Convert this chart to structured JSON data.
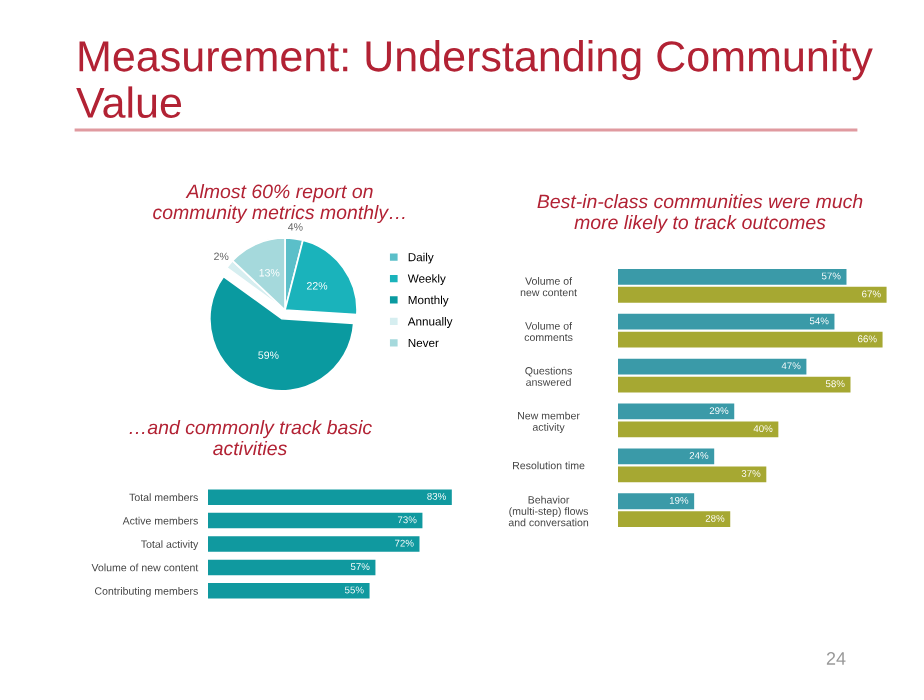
{
  "chart_data": [
    {
      "type": "other",
      "title": "Measurement: Understanding Community Value",
      "annotations": [
        "24"
      ]
    },
    {
      "type": "pie",
      "title": "Almost 60% report on\ncommunity metrics monthly…",
      "categories": [
        "Daily",
        "Weekly",
        "Monthly",
        "Annually",
        "Never"
      ],
      "values": [
        4,
        22,
        59,
        2,
        13
      ],
      "colors": [
        "#5bbfc9",
        "#1ab3bb",
        "#0a9aa0",
        "#d6eef0",
        "#a5d9dc"
      ],
      "value_labels": [
        "4%",
        "22%",
        "59%",
        "2%",
        "13%"
      ],
      "legend": "right"
    },
    {
      "type": "bar",
      "orientation": "horizontal",
      "title": "…and commonly track basic\nactivities",
      "categories": [
        "Total members",
        "Active members",
        "Total activity",
        "Volume of new content",
        "Contributing members"
      ],
      "values": [
        83,
        73,
        72,
        57,
        55
      ],
      "color": "#10999f",
      "value_labels": [
        "83%",
        "73%",
        "72%",
        "57%",
        "55%"
      ]
    },
    {
      "type": "bar",
      "orientation": "horizontal",
      "title": "Best-in-class communities were much\nmore likely to track outcomes",
      "categories": [
        "Volume of\nnew content",
        "Volume of\ncomments",
        "Questions\nanswered",
        "New member\nactivity",
        "Resolution time",
        "Behavior\n(multi-step) flows\nand conversation"
      ],
      "series": [
        {
          "color": "#3a9aa8",
          "values": [
            57,
            54,
            47,
            29,
            24,
            19
          ],
          "value_labels": [
            "57%",
            "54%",
            "47%",
            "29%",
            "24%",
            "19%"
          ]
        },
        {
          "color": "#a6a832",
          "values": [
            67,
            66,
            58,
            40,
            37,
            28
          ],
          "value_labels": [
            "67%",
            "66%",
            "58%",
            "40%",
            "37%",
            "28%"
          ]
        }
      ]
    }
  ]
}
